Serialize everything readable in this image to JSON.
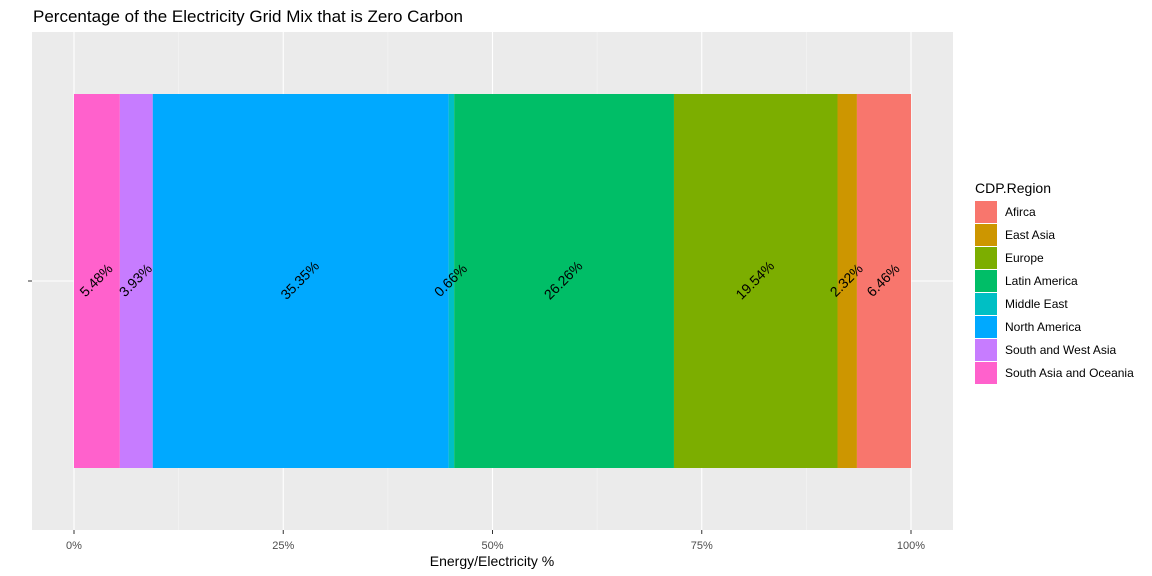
{
  "chart_data": {
    "type": "bar",
    "orientation": "horizontal-stacked",
    "title": "Percentage of the Electricity Grid Mix that is Zero Carbon",
    "xlabel": "Energy/Electricity %",
    "ylabel": "",
    "xlim": [
      0,
      100
    ],
    "x_ticks": [
      "0%",
      "25%",
      "50%",
      "75%",
      "100%"
    ],
    "x_tick_values": [
      0,
      25,
      50,
      75,
      100
    ],
    "grid": true,
    "legend_title": "CDP.Region",
    "legend_position": "right",
    "legend": [
      {
        "name": "Afirca",
        "color": "#F8766D"
      },
      {
        "name": "East Asia",
        "color": "#CD9600"
      },
      {
        "name": "Europe",
        "color": "#7CAE00"
      },
      {
        "name": "Latin America",
        "color": "#00BE67"
      },
      {
        "name": "Middle East",
        "color": "#00BFC4"
      },
      {
        "name": "North America",
        "color": "#00A9FF"
      },
      {
        "name": "South and West Asia",
        "color": "#C77CFF"
      },
      {
        "name": "South Asia and Oceania",
        "color": "#FF61CC"
      }
    ],
    "segments": [
      {
        "name": "South Asia and Oceania",
        "value": 5.48,
        "label": "5.48%",
        "color": "#FF61CC"
      },
      {
        "name": "South and West Asia",
        "value": 3.93,
        "label": "3.93%",
        "color": "#C77CFF"
      },
      {
        "name": "North America",
        "value": 35.35,
        "label": "35.35%",
        "color": "#00A9FF"
      },
      {
        "name": "Middle East",
        "value": 0.66,
        "label": "0.66%",
        "color": "#00BFC4"
      },
      {
        "name": "Latin America",
        "value": 26.26,
        "label": "26.26%",
        "color": "#00BE67"
      },
      {
        "name": "Europe",
        "value": 19.54,
        "label": "19.54%",
        "color": "#7CAE00"
      },
      {
        "name": "East Asia",
        "value": 2.32,
        "label": "2.32%",
        "color": "#CD9600"
      },
      {
        "name": "Afirca",
        "value": 6.46,
        "label": "6.46%",
        "color": "#F8766D"
      }
    ]
  }
}
